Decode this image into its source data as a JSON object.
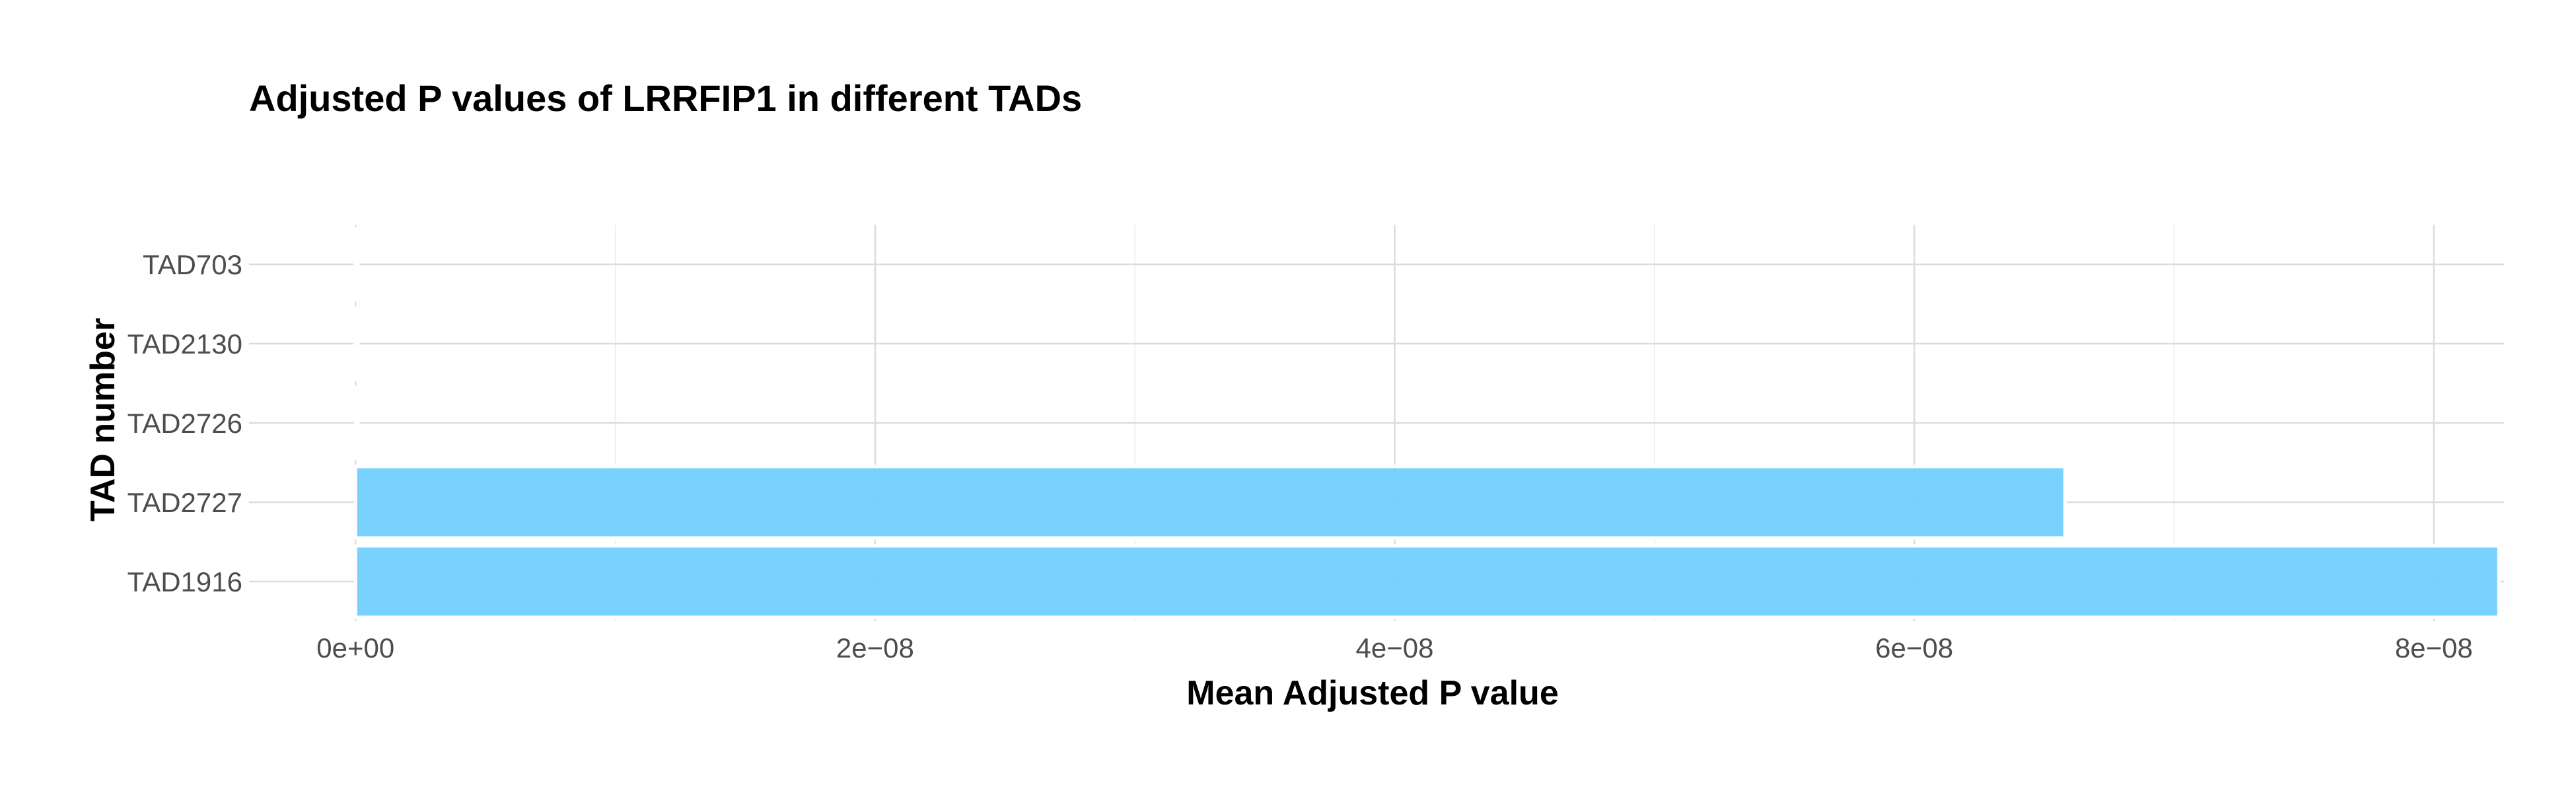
{
  "chart_data": {
    "type": "bar",
    "orientation": "horizontal",
    "title": "Adjusted P values of LRRFIP1 in different TADs",
    "xlabel": "Mean Adjusted P value",
    "ylabel": "TAD number",
    "categories": [
      "TAD1916",
      "TAD2727",
      "TAD2726",
      "TAD2130",
      "TAD703"
    ],
    "values": [
      8.25e-08,
      6.58e-08,
      1e-10,
      1e-10,
      1e-10
    ],
    "xlim": [
      -4.1e-09,
      8.27e-08
    ],
    "xticks": [
      0,
      2e-08,
      4e-08,
      6e-08,
      8e-08
    ],
    "xtick_labels": [
      "0e+00",
      "2e−08",
      "4e−08",
      "6e−08",
      "8e−08"
    ],
    "bar_color": "#6ecdfd",
    "grid": true
  }
}
